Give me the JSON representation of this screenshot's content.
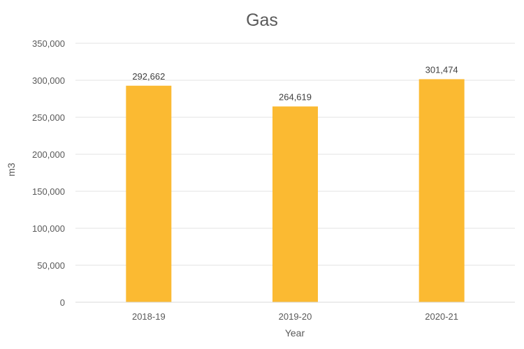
{
  "chart_data": {
    "type": "bar",
    "title": "Gas",
    "xlabel": "Year",
    "ylabel": "m3",
    "categories": [
      "2018-19",
      "2019-20",
      "2020-21"
    ],
    "values": [
      292662,
      264619,
      301474
    ],
    "value_labels": [
      "292,662",
      "264,619",
      "301,474"
    ],
    "ylim": [
      0,
      350000
    ],
    "y_ticks": [
      0,
      50000,
      100000,
      150000,
      200000,
      250000,
      300000,
      350000
    ],
    "y_tick_labels": [
      "0",
      "50,000",
      "100,000",
      "150,000",
      "200,000",
      "250,000",
      "300,000",
      "350,000"
    ],
    "grid": true,
    "legend": "none",
    "bar_color": "#FBBA32"
  }
}
